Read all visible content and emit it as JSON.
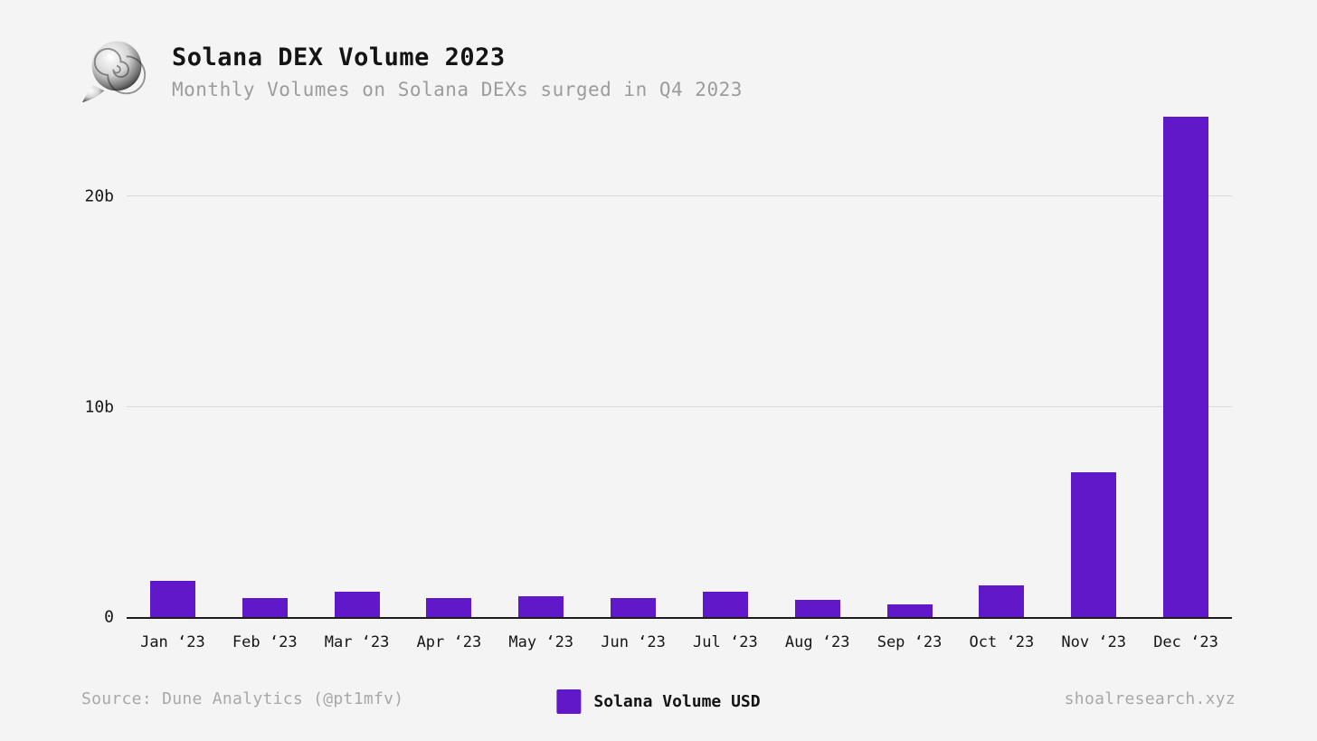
{
  "page": {
    "background": "#f4f4f4"
  },
  "header": {
    "title": "Solana DEX Volume 2023",
    "subtitle": "Monthly Volumes on Solana DEXs surged in Q4 2023",
    "logo": "shell-logo"
  },
  "footer": {
    "source": "Source: Dune Analytics (@pt1mfv)",
    "site": "shoalresearch.xyz"
  },
  "legend": {
    "label": "Solana Volume USD",
    "color": "#6018c8"
  },
  "chart_data": {
    "type": "bar",
    "title": "Solana DEX Volume 2023",
    "subtitle": "Monthly Volumes on Solana DEXs surged in Q4 2023",
    "unit": "billions USD",
    "categories": [
      "Jan",
      "Feb",
      "Mar",
      "Apr",
      "May",
      "Jun",
      "Jul",
      "Aug",
      "Sep",
      "Oct",
      "Nov",
      "Dec"
    ],
    "x_tick_year": "‘23",
    "values": [
      1.7,
      0.9,
      1.2,
      0.9,
      1.0,
      0.9,
      1.2,
      0.8,
      0.6,
      1.5,
      6.9,
      23.8
    ],
    "series_name": "Solana Volume USD",
    "y_ticks": [
      {
        "value": 0,
        "label": "0"
      },
      {
        "value": 10,
        "label": "10b"
      },
      {
        "value": 20,
        "label": "20b"
      }
    ],
    "ylim": [
      0,
      24
    ],
    "bar_color": "#6018c8",
    "grid": true,
    "legend_position": "bottom-center"
  }
}
